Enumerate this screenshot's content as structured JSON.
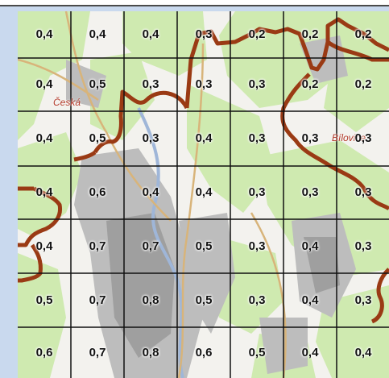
{
  "map": {
    "grid": [
      [
        "0,4",
        "0,4",
        "0,4",
        "0,3",
        "0,2",
        "0,2",
        "0,2"
      ],
      [
        "0,4",
        "0,5",
        "0,3",
        "0,3",
        "0,3",
        "0,2",
        "0,2"
      ],
      [
        "0,4",
        "0,5",
        "0,3",
        "0,4",
        "0,3",
        "0,3",
        "0,3"
      ],
      [
        "0,4",
        "0,6",
        "0,4",
        "0,4",
        "0,3",
        "0,3",
        "0,3"
      ],
      [
        "0,4",
        "0,7",
        "0,7",
        "0,5",
        "0,3",
        "0,4",
        "0,3"
      ],
      [
        "0,5",
        "0,7",
        "0,8",
        "0,5",
        "0,3",
        "0,4",
        "0,3"
      ],
      [
        "0,6",
        "0,7",
        "0,8",
        "0,6",
        "0,5",
        "0,4",
        "0,4"
      ]
    ],
    "places": [
      {
        "id": "ceska",
        "label": "Česká"
      },
      {
        "id": "bilovice",
        "label": "Bílovice"
      }
    ],
    "colors": {
      "forest": "#cfeab0",
      "urban": "#b9b9b9",
      "boundary": "#9a3a14",
      "grid": "#111111",
      "road": "#d8b47a"
    }
  }
}
